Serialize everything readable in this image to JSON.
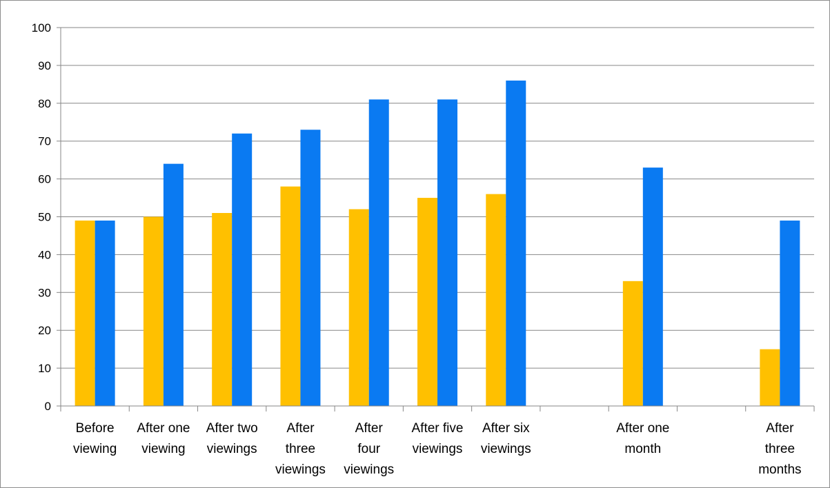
{
  "chart_data": {
    "type": "bar",
    "title": "",
    "xlabel": "",
    "ylabel": "",
    "ylim": [
      0,
      100
    ],
    "yticks": [
      "0",
      "10",
      "20",
      "30",
      "40",
      "50",
      "60",
      "70",
      "80",
      "90",
      "100"
    ],
    "grid": "horizontal",
    "legend": "none",
    "categories": [
      [
        "Before",
        "viewing"
      ],
      [
        "After one",
        "viewing"
      ],
      [
        "After two",
        "viewings"
      ],
      [
        "After",
        "three",
        "viewings"
      ],
      [
        "After",
        "four",
        "viewings"
      ],
      [
        "After five",
        "viewings"
      ],
      [
        "After six",
        "viewings"
      ],
      [],
      [
        "After one",
        "month"
      ],
      [],
      [
        "After",
        "three",
        "months"
      ]
    ],
    "series": [
      {
        "color": "#FFC000",
        "values": [
          49,
          50,
          51,
          58,
          52,
          55,
          56,
          null,
          33,
          null,
          15
        ]
      },
      {
        "color": "#0A7AF2",
        "values": [
          49,
          64,
          72,
          73,
          81,
          81,
          86,
          null,
          63,
          null,
          49
        ]
      }
    ]
  }
}
